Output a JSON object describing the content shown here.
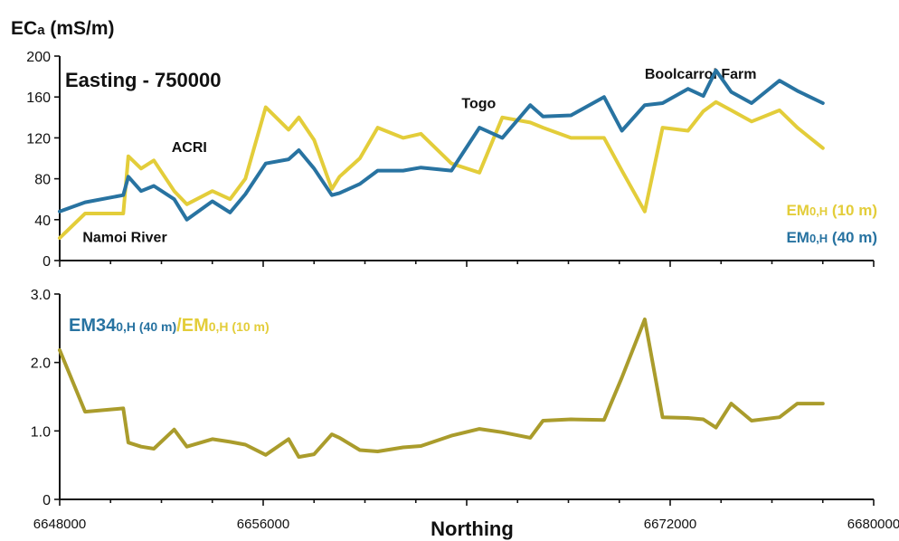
{
  "chart_data": [
    {
      "type": "line",
      "ylabel": "ECa (mS/m)",
      "ylabel_main": "EC",
      "ylabel_sub": "a",
      "ylabel_unit": " (mS/m)",
      "subtitle": "Easting - 750000",
      "ylim": [
        0,
        200
      ],
      "yticks": [
        "0",
        "40",
        "80",
        "120",
        "160",
        "200"
      ],
      "xlim": [
        6648000,
        6680000
      ],
      "grid": false,
      "legend_position": "bottom-right",
      "annotations": [
        {
          "text": "Namoi River",
          "x": 6648900,
          "y": 18
        },
        {
          "text": "ACRI",
          "x": 6652400,
          "y": 106
        },
        {
          "text": "Togo",
          "x": 6663800,
          "y": 149
        },
        {
          "text": "Boolcarrol Farm",
          "x": 6671000,
          "y": 178
        }
      ],
      "series": [
        {
          "name": "EM0,H (10 m)",
          "name_main": "EM",
          "name_sub": "0,H",
          "name_suffix": " (10 m)",
          "color": "#e3cd3a",
          "x": [
            6648000,
            6649000,
            6650500,
            6650700,
            6651200,
            6651700,
            6652500,
            6653000,
            6654000,
            6654700,
            6655300,
            6656100,
            6657000,
            6657400,
            6658000,
            6658700,
            6659000,
            6659800,
            6660500,
            6661500,
            6662200,
            6663400,
            6664500,
            6665400,
            6666500,
            6667000,
            6668100,
            6669400,
            6670100,
            6671000,
            6671700,
            6672700,
            6673300,
            6673800,
            6674400,
            6675200,
            6676300,
            6677000,
            6678000
          ],
          "values": [
            22,
            46,
            46,
            102,
            90,
            98,
            68,
            55,
            68,
            60,
            80,
            150,
            128,
            140,
            118,
            70,
            82,
            100,
            130,
            120,
            124,
            95,
            86,
            140,
            135,
            130,
            120,
            120,
            88,
            48,
            130,
            127,
            146,
            155,
            147,
            136,
            147,
            130,
            110
          ]
        },
        {
          "name": "EM0,H (40 m)",
          "name_main": "EM",
          "name_sub": "0,H",
          "name_suffix": " (40 m)",
          "color": "#2873a1",
          "x": [
            6648000,
            6649000,
            6650500,
            6650700,
            6651200,
            6651700,
            6652500,
            6653000,
            6654000,
            6654700,
            6655300,
            6656100,
            6657000,
            6657400,
            6658000,
            6658700,
            6659000,
            6659800,
            6660500,
            6661500,
            6662200,
            6663400,
            6664500,
            6665400,
            6666500,
            6667000,
            6668100,
            6669400,
            6670100,
            6671000,
            6671700,
            6672700,
            6673300,
            6673800,
            6674400,
            6675200,
            6676300,
            6677000,
            6678000
          ],
          "values": [
            48,
            57,
            64,
            82,
            68,
            73,
            60,
            40,
            58,
            47,
            65,
            95,
            99,
            108,
            90,
            64,
            66,
            75,
            88,
            88,
            91,
            88,
            130,
            120,
            152,
            141,
            142,
            160,
            127,
            152,
            154,
            168,
            161,
            186,
            165,
            154,
            176,
            166,
            154
          ]
        }
      ]
    },
    {
      "type": "line",
      "ylim": [
        0,
        3.0
      ],
      "yticks": [
        "0",
        "1.0",
        "2.0",
        "3.0"
      ],
      "xlim": [
        6648000,
        6680000
      ],
      "xlabel": "Northing",
      "xticks": [
        "6648000",
        "6656000",
        "6664000",
        "6672000",
        "6680000"
      ],
      "xticks_visible": [
        "6648000",
        "6656000",
        "",
        "6672000",
        "6680000"
      ],
      "grid": false,
      "legend_position": "top-left",
      "series": [
        {
          "name": "EM340,H (40 m)/EM0,H (10 m)",
          "color": "#aa9c2c",
          "legend_parts": [
            {
              "main": "EM34",
              "sub": "0,H",
              "suffix": " (40 m)",
              "color": "#2873a1"
            },
            {
              "main": "/EM",
              "sub": "0,H",
              "suffix": " (10 m)",
              "color": "#e3cd3a"
            }
          ],
          "x": [
            6648000,
            6649000,
            6650500,
            6650700,
            6651200,
            6651700,
            6652500,
            6653000,
            6654000,
            6654700,
            6655300,
            6656100,
            6657000,
            6657400,
            6658000,
            6658700,
            6659000,
            6659800,
            6660500,
            6661500,
            6662200,
            6663400,
            6664500,
            6665400,
            6666500,
            6667000,
            6668100,
            6669400,
            6670100,
            6671000,
            6671700,
            6672700,
            6673300,
            6673800,
            6674400,
            6675200,
            6676300,
            6677000,
            6678000
          ],
          "values": [
            2.18,
            1.28,
            1.33,
            0.83,
            0.77,
            0.74,
            1.02,
            0.77,
            0.88,
            0.84,
            0.8,
            0.65,
            0.88,
            0.62,
            0.66,
            0.95,
            0.9,
            0.72,
            0.7,
            0.76,
            0.78,
            0.93,
            1.03,
            0.98,
            0.9,
            1.15,
            1.17,
            1.16,
            1.78,
            2.63,
            1.2,
            1.19,
            1.17,
            1.05,
            1.4,
            1.15,
            1.2,
            1.4,
            1.4
          ]
        }
      ]
    }
  ]
}
